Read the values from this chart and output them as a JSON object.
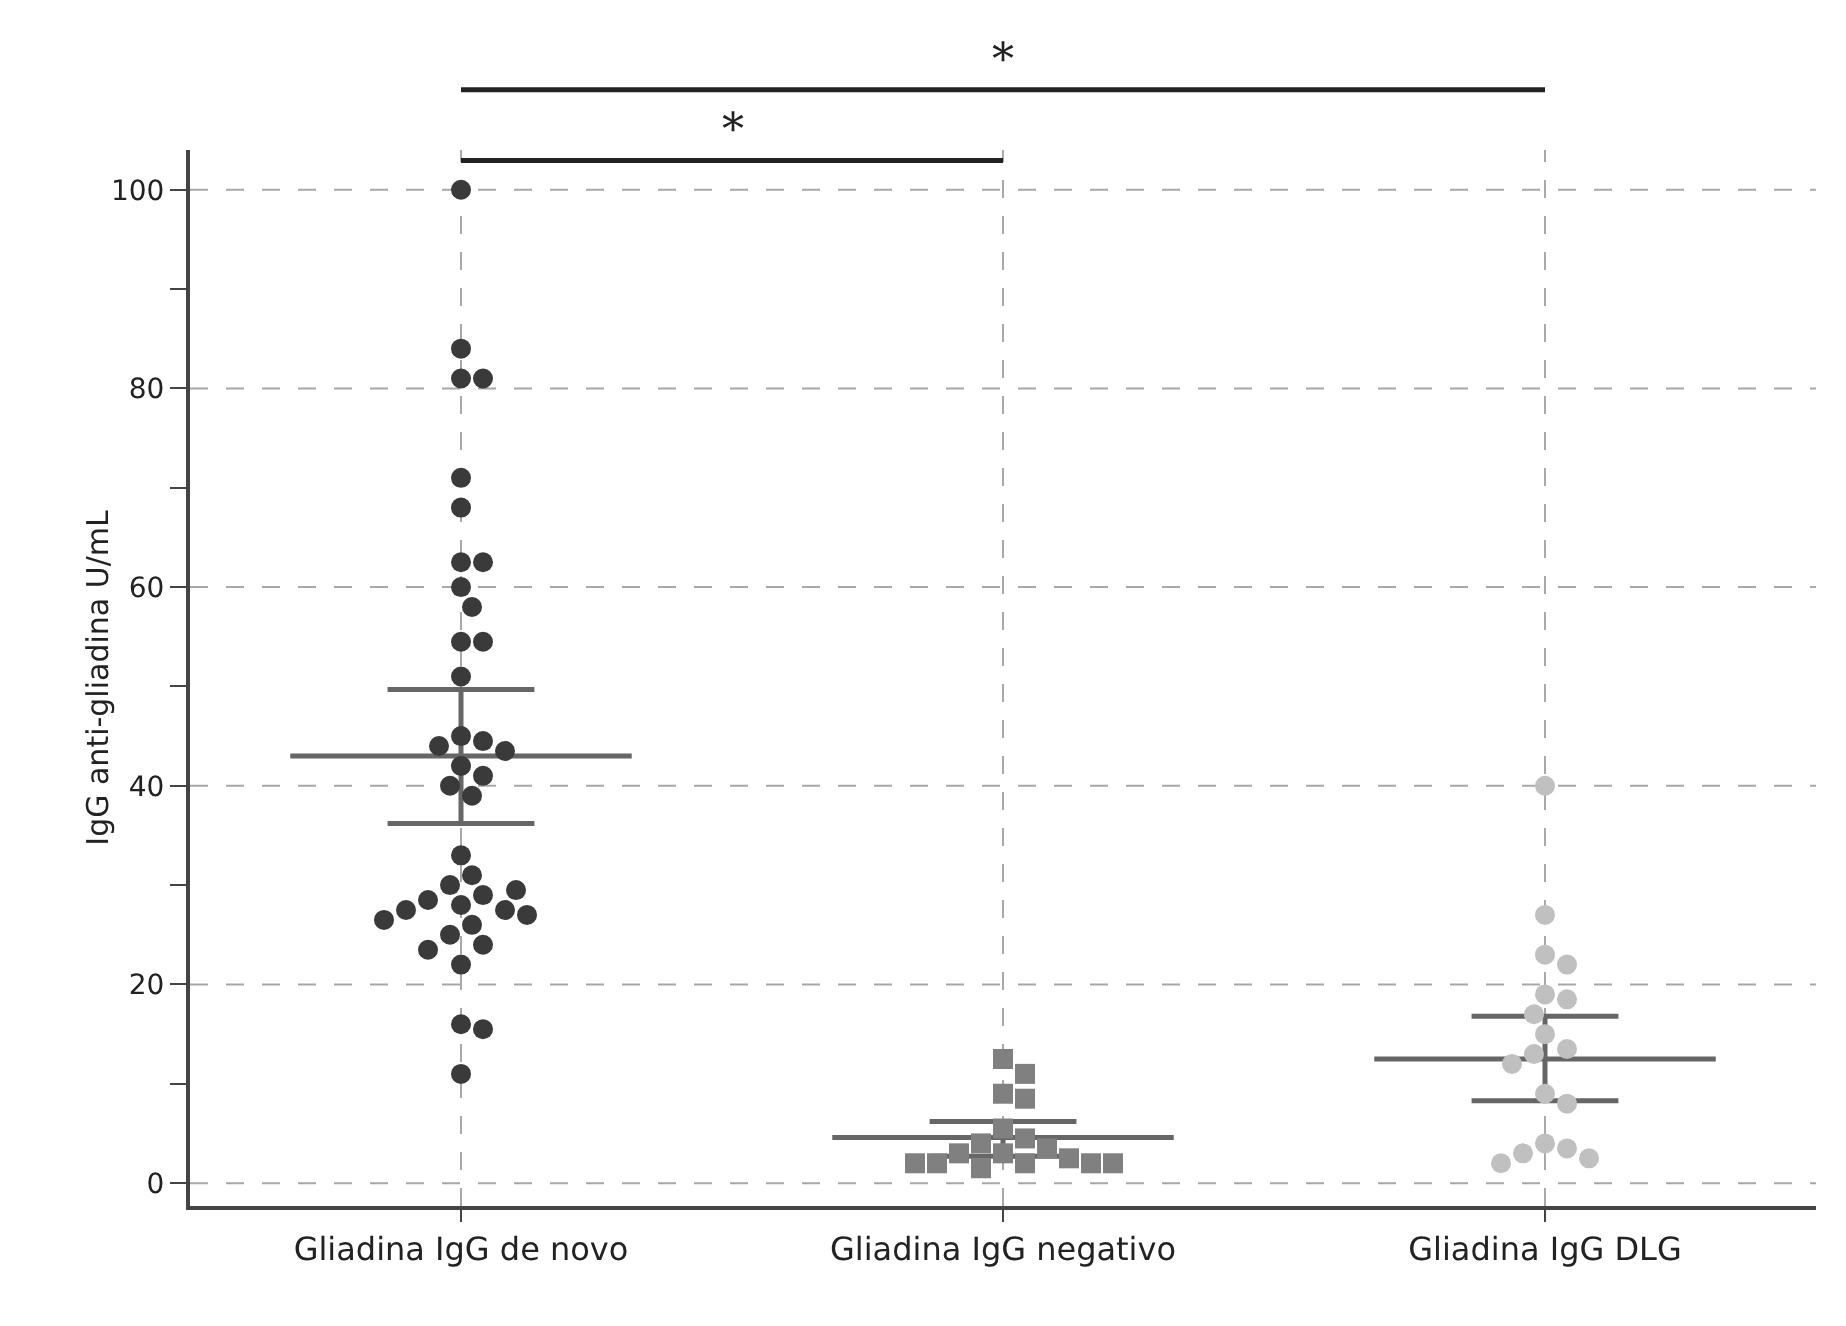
{
  "chart_data": {
    "type": "scatter",
    "ylabel": "IgG anti-gliadina U/mL",
    "categories": [
      "Gliadina IgG de novo",
      "Gliadina IgG negativo",
      "Gliadina IgG DLG"
    ],
    "ylim": [
      -2.3,
      104
    ],
    "yticks": [
      0,
      {
        "value": 10,
        "label": null
      },
      20,
      {
        "value": 30,
        "label": null
      },
      40,
      {
        "value": 50,
        "label": null
      },
      60,
      {
        "value": 70,
        "label": null
      },
      80,
      {
        "value": 90,
        "label": null
      },
      100
    ],
    "grid": true,
    "line_style": "dashed",
    "annotations": [
      "*",
      "*"
    ],
    "series": [
      {
        "x": [
          "Gliadina IgG de novo",
          "Gliadina IgG de novo",
          "Gliadina IgG de novo",
          "Gliadina IgG de novo",
          "Gliadina IgG de novo",
          "Gliadina IgG de novo",
          "Gliadina IgG de novo",
          "Gliadina IgG de novo",
          "Gliadina IgG de novo",
          "Gliadina IgG de novo",
          "Gliadina IgG de novo",
          "Gliadina IgG de novo",
          "Gliadina IgG de novo",
          "Gliadina IgG de novo",
          "Gliadina IgG de novo",
          "Gliadina IgG de novo",
          "Gliadina IgG de novo",
          "Gliadina IgG de novo",
          "Gliadina IgG de novo",
          "Gliadina IgG de novo",
          "Gliadina IgG de novo",
          "Gliadina IgG de novo",
          "Gliadina IgG de novo",
          "Gliadina IgG de novo",
          "Gliadina IgG de novo",
          "Gliadina IgG de novo",
          "Gliadina IgG de novo",
          "Gliadina IgG de novo",
          "Gliadina IgG de novo",
          "Gliadina IgG de novo",
          "Gliadina IgG de novo",
          "Gliadina IgG de novo",
          "Gliadina IgG de novo",
          "Gliadina IgG de novo",
          "Gliadina IgG de novo",
          "Gliadina IgG de novo",
          "Gliadina IgG de novo",
          "Gliadina IgG de novo",
          "Gliadina IgG de novo",
          "Gliadina IgG de novo"
        ],
        "color": "#3a3a3a",
        "marker": "circle",
        "values": [
          100,
          84,
          81,
          81,
          71,
          68,
          62.5,
          62.5,
          60,
          58,
          54.5,
          54.5,
          51,
          45,
          44.5,
          44,
          43.5,
          42,
          41,
          40,
          39,
          33,
          31,
          30,
          29,
          28.5,
          28,
          27.5,
          27.5,
          27,
          26,
          25,
          24,
          23.5,
          22,
          16,
          15.5,
          11,
          29.5,
          26.5
        ]
      },
      {
        "x": [
          "Gliadina IgG negativo",
          "Gliadina IgG negativo",
          "Gliadina IgG negativo",
          "Gliadina IgG negativo",
          "Gliadina IgG negativo",
          "Gliadina IgG negativo",
          "Gliadina IgG negativo",
          "Gliadina IgG negativo",
          "Gliadina IgG negativo",
          "Gliadina IgG negativo",
          "Gliadina IgG negativo",
          "Gliadina IgG negativo",
          "Gliadina IgG negativo",
          "Gliadina IgG negativo",
          "Gliadina IgG negativo",
          "Gliadina IgG negativo",
          "Gliadina IgG negativo"
        ],
        "color": "#808080",
        "marker": "square",
        "values": [
          12.5,
          11,
          9,
          8.5,
          5.5,
          4.5,
          4,
          3.5,
          3,
          3,
          2.5,
          2,
          2,
          2,
          2,
          2,
          1.5
        ]
      },
      {
        "x": [
          "Gliadina IgG DLG",
          "Gliadina IgG DLG",
          "Gliadina IgG DLG",
          "Gliadina IgG DLG",
          "Gliadina IgG DLG",
          "Gliadina IgG DLG",
          "Gliadina IgG DLG",
          "Gliadina IgG DLG",
          "Gliadina IgG DLG",
          "Gliadina IgG DLG",
          "Gliadina IgG DLG",
          "Gliadina IgG DLG",
          "Gliadina IgG DLG",
          "Gliadina IgG DLG",
          "Gliadina IgG DLG",
          "Gliadina IgG DLG",
          "Gliadina IgG DLG",
          "Gliadina IgG DLG"
        ],
        "color": "#c0c0c0",
        "marker": "circle",
        "values": [
          40,
          27,
          23,
          22,
          19,
          18.5,
          17,
          15,
          13.5,
          13,
          12,
          9,
          8,
          4,
          3.5,
          3,
          2.5,
          2
        ]
      },
      {
        "type": "box",
        "color": "#666666",
        "boxes": [
          {
            "low": 36.2,
            "q1": 43,
            "median": 43,
            "q3": 43,
            "high": 49.7
          },
          {
            "low": 2.7,
            "q1": 4.6,
            "median": 4.6,
            "q3": 4.6,
            "high": 6.2
          },
          {
            "low": 8.3,
            "q1": 12.5,
            "median": 12.5,
            "q3": 12.5,
            "high": 16.8
          }
        ]
      }
    ]
  }
}
